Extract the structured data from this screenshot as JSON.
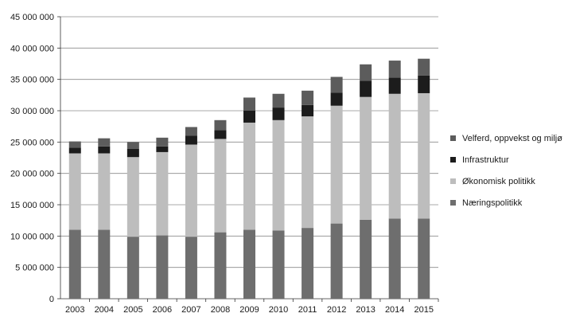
{
  "chart_data": {
    "type": "bar",
    "stacked": true,
    "title": "",
    "xlabel": "",
    "ylabel": "",
    "ylim": [
      0,
      45000000
    ],
    "yticks": [
      "0",
      "5 000 000",
      "10 000 000",
      "15 000 000",
      "20 000 000",
      "25 000 000",
      "30 000 000",
      "35 000 000",
      "40 000 000",
      "45 000 000"
    ],
    "grid": true,
    "legend_position": "right",
    "categories": [
      "2003",
      "2004",
      "2005",
      "2006",
      "2007",
      "2008",
      "2009",
      "2010",
      "2011",
      "2012",
      "2013",
      "2014",
      "2015"
    ],
    "series": [
      {
        "name": "Næringspolitikk",
        "color": "#6e6e6e",
        "values": [
          11000000,
          11000000,
          9900000,
          10100000,
          9900000,
          10600000,
          11000000,
          10900000,
          11300000,
          12000000,
          12600000,
          12800000,
          12800000
        ]
      },
      {
        "name": "Økonomisk politikk",
        "color": "#bdbdbd",
        "values": [
          12200000,
          12200000,
          12700000,
          13300000,
          14700000,
          14900000,
          17100000,
          17600000,
          17800000,
          18800000,
          19600000,
          19900000,
          20000000
        ]
      },
      {
        "name": "Infrastruktur",
        "color": "#1c1c1c",
        "values": [
          900000,
          1100000,
          1300000,
          900000,
          1400000,
          1400000,
          1900000,
          2000000,
          1800000,
          2100000,
          2600000,
          2600000,
          2800000
        ]
      },
      {
        "name": "Velferd, oppvekst og miljø",
        "color": "#5c5c5c",
        "values": [
          1000000,
          1300000,
          1100000,
          1400000,
          1400000,
          1600000,
          2100000,
          2200000,
          2300000,
          2500000,
          2600000,
          2700000,
          2700000
        ]
      }
    ]
  }
}
